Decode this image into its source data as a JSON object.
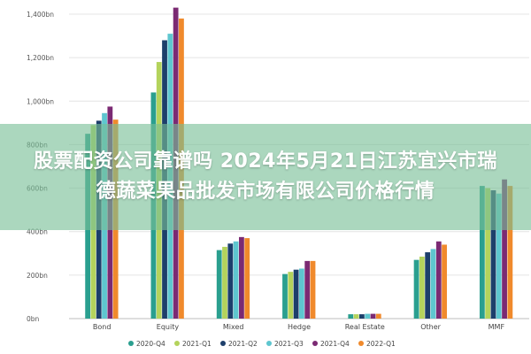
{
  "banner": {
    "text": "股票配资公司靠谱吗 2024年5月21日江苏宜兴市瑞德蔬菜果品批发市场有限公司价格行情"
  },
  "chart_data": {
    "type": "bar",
    "categories": [
      "Bond",
      "Equity",
      "Mixed",
      "Hedge",
      "Real Estate",
      "Other",
      "MMF"
    ],
    "series": [
      {
        "name": "2020-Q4",
        "color": "#2a9f8f",
        "values": [
          850,
          1040,
          315,
          205,
          20,
          270,
          610
        ]
      },
      {
        "name": "2021-Q1",
        "color": "#b4d35c",
        "values": [
          890,
          1180,
          330,
          215,
          20,
          285,
          600
        ]
      },
      {
        "name": "2021-Q2",
        "color": "#1d3f6b",
        "values": [
          910,
          1280,
          345,
          225,
          20,
          305,
          590
        ]
      },
      {
        "name": "2021-Q3",
        "color": "#5ec6cf",
        "values": [
          945,
          1310,
          355,
          230,
          22,
          320,
          575
        ]
      },
      {
        "name": "2021-Q4",
        "color": "#7b2a73",
        "values": [
          975,
          1430,
          375,
          265,
          22,
          355,
          640
        ]
      },
      {
        "name": "2022-Q1",
        "color": "#f08a2c",
        "values": [
          915,
          1380,
          370,
          265,
          22,
          340,
          610
        ]
      }
    ],
    "yticks": [
      "0bn",
      "200bn",
      "400bn",
      "600bn",
      "800bn",
      "1,000bn",
      "1,200bn",
      "1,400bn"
    ],
    "ylim": [
      0,
      1400
    ],
    "grid": true,
    "legend_position": "bottom"
  }
}
